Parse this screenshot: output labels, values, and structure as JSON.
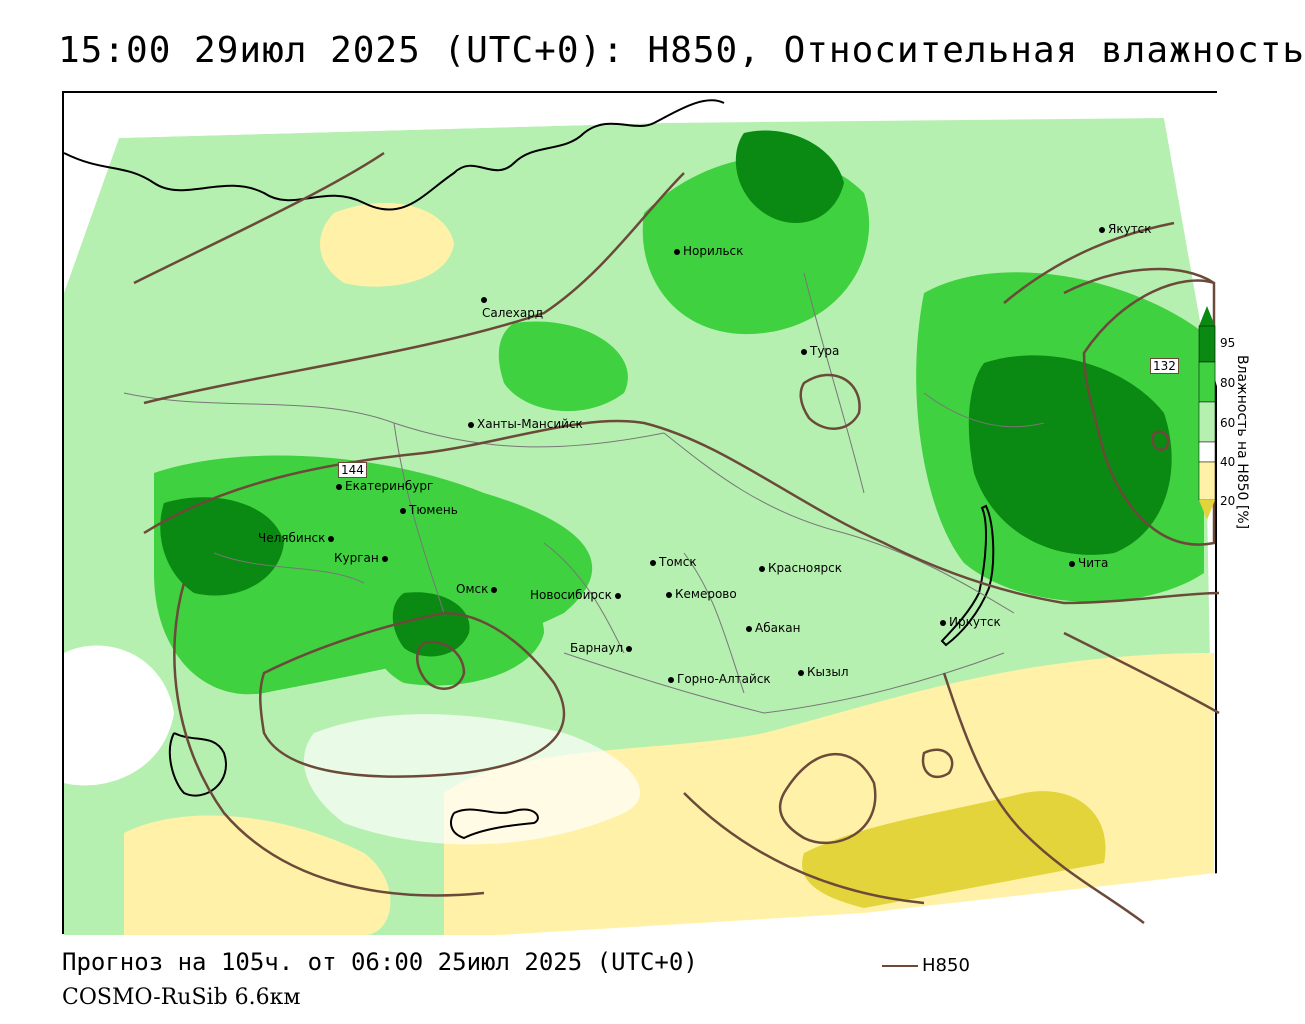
{
  "title": "15:00 29июл 2025 (UTC+0): H850, Относительная влажность",
  "footer": {
    "forecast": "Прогноз на 105ч. от 06:00 25июл 2025 (UTC+0)",
    "model": "COSMO-RuSib 6.6км"
  },
  "legend": {
    "line_label": "H850",
    "line_color": "#6b4a3a"
  },
  "colorbar": {
    "title": "Влажность на H850 [%]",
    "ticks": [
      "95",
      "80",
      "60",
      "40",
      "20"
    ],
    "colors": [
      "#0a8a12",
      "#3fd13f",
      "#b6f0b0",
      "#ffffff",
      "#fff2a8",
      "#e2d43a"
    ]
  },
  "contour_labels": [
    "144",
    "132"
  ],
  "cities": [
    {
      "name": "Салехард"
    },
    {
      "name": "Норильск"
    },
    {
      "name": "Якутск"
    },
    {
      "name": "Тура"
    },
    {
      "name": "Ханты-Мансийск"
    },
    {
      "name": "Екатеринбург"
    },
    {
      "name": "Тюмень"
    },
    {
      "name": "Челябинск"
    },
    {
      "name": "Курган"
    },
    {
      "name": "Омск"
    },
    {
      "name": "Новосибирск"
    },
    {
      "name": "Томск"
    },
    {
      "name": "Кемерово"
    },
    {
      "name": "Красноярск"
    },
    {
      "name": "Абакан"
    },
    {
      "name": "Барнаул"
    },
    {
      "name": "Горно-Алтайск"
    },
    {
      "name": "Кызыл"
    },
    {
      "name": "Иркутск"
    },
    {
      "name": "Чита"
    }
  ]
}
